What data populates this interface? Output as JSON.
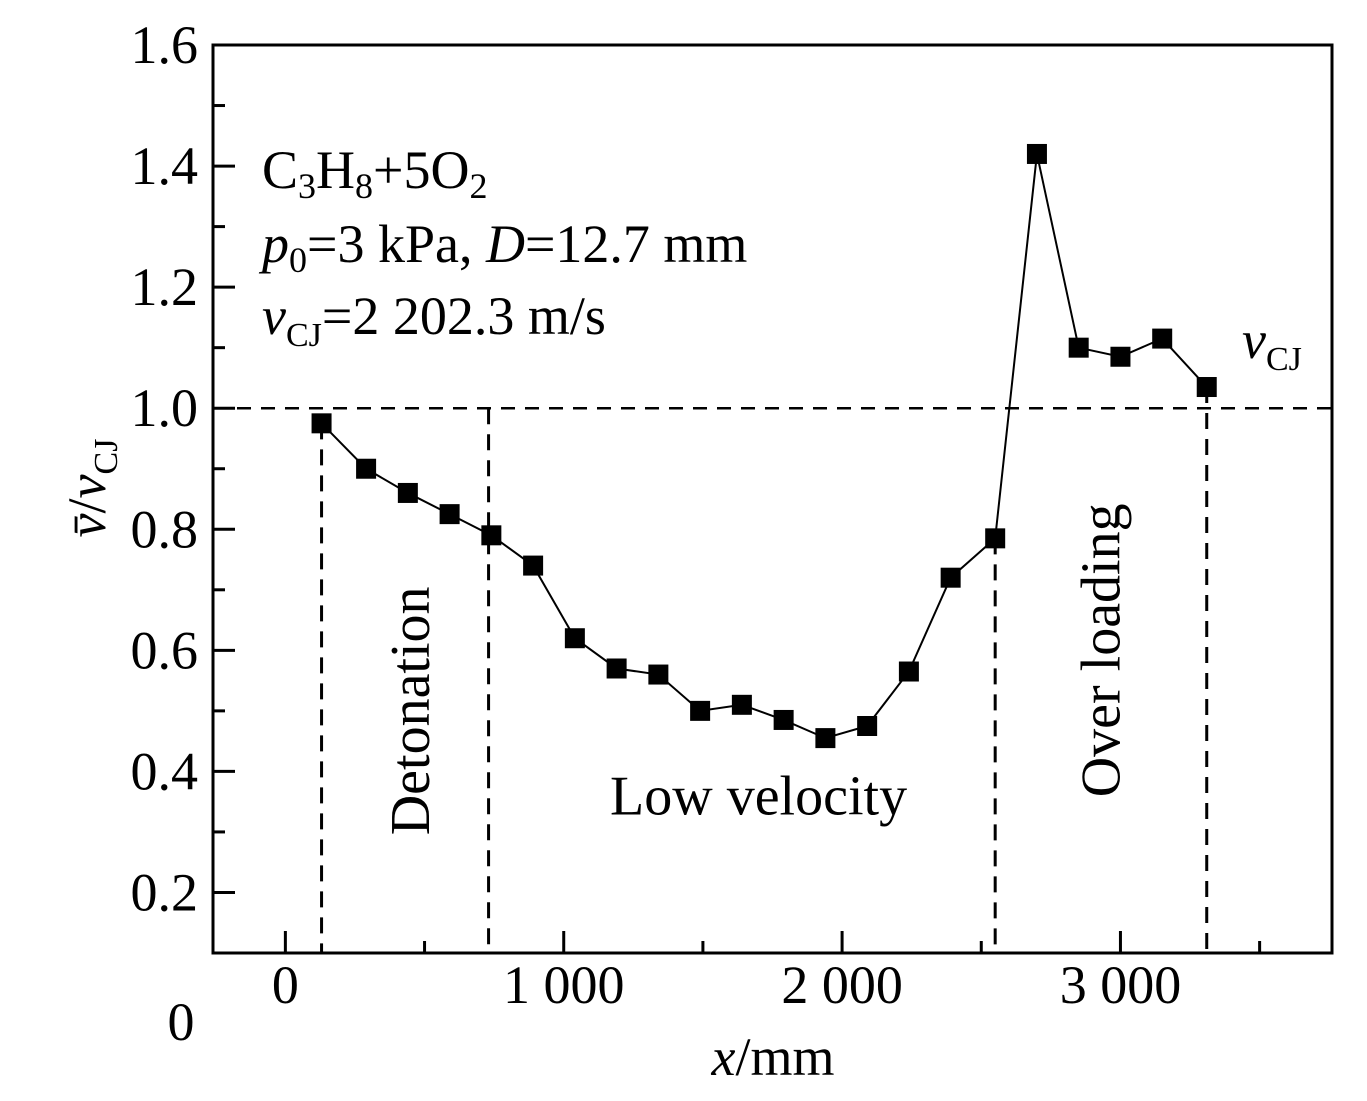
{
  "chart_data": {
    "type": "line",
    "annotation_lines": [
      "C3H8+5O2",
      "p0=3 kPa, D=12.7 mm",
      "vCJ=2 202.3 m/s"
    ],
    "annotation": {
      "mixture_prefix": "C",
      "mixture_c_sub": "3",
      "mixture_h": "H",
      "mixture_h_sub": "8",
      "mixture_plus": "+5O",
      "mixture_o_sub": "2",
      "pressure_symbol": "p",
      "pressure_sub": "0",
      "pressure_value": "=3 kPa, ",
      "diameter_symbol": "D",
      "diameter_value": "=12.7 mm",
      "vcj_symbol": "v",
      "vcj_sub": "CJ",
      "vcj_value": "=2 202.3 m/s"
    },
    "xlabel": "x/mm",
    "xlabel_parts": {
      "symbol": "x",
      "unit": "/mm"
    },
    "ylabel": "v̄/vCJ",
    "ylabel_parts": {
      "symbol": "v̄",
      "slash": "/",
      "den": "v",
      "den_sub": "CJ"
    },
    "xlim": [
      -260,
      3760
    ],
    "ylim": [
      0.1,
      1.6
    ],
    "x_ticks": [
      0,
      1000,
      2000,
      3000
    ],
    "x_tick_labels": [
      "0",
      "1 000",
      "2 000",
      "3 000"
    ],
    "x_minor_ticks": [
      500,
      1500,
      2500,
      3500
    ],
    "y_ticks": [
      0.2,
      0.4,
      0.6,
      0.8,
      1.0,
      1.2,
      1.4,
      1.6
    ],
    "y_tick_labels": [
      "0.2",
      "0.4",
      "0.6",
      "0.8",
      "1.0",
      "1.2",
      "1.4",
      "1.6"
    ],
    "y_minor_ticks": [
      0.3,
      0.5,
      0.7,
      0.9,
      1.1,
      1.3,
      1.5
    ],
    "origin_label": "0",
    "reference_line": {
      "y": 1.0,
      "label_symbol": "v",
      "label_sub": "CJ"
    },
    "boundaries_x": [
      130,
      730,
      2550,
      3310
    ],
    "regions": [
      {
        "label": "Detonation",
        "x": 470,
        "y": 0.5,
        "orientation": "vertical"
      },
      {
        "label": "Low velocity",
        "x": 1700,
        "y": 0.35,
        "orientation": "horizontal"
      },
      {
        "label": "Over loading",
        "x": 2950,
        "y": 0.6,
        "orientation": "vertical"
      }
    ],
    "series": [
      {
        "marker": "square",
        "color": "#000000",
        "x": [
          130,
          290,
          440,
          590,
          740,
          890,
          1040,
          1190,
          1340,
          1490,
          1640,
          1790,
          1940,
          2090,
          2240,
          2390,
          2550,
          2700,
          2850,
          3000,
          3150,
          3310
        ],
        "y": [
          0.975,
          0.9,
          0.86,
          0.825,
          0.79,
          0.74,
          0.62,
          0.57,
          0.56,
          0.5,
          0.51,
          0.485,
          0.455,
          0.475,
          0.565,
          0.72,
          0.785,
          1.42,
          1.1,
          1.085,
          1.115,
          1.035
        ]
      }
    ]
  }
}
